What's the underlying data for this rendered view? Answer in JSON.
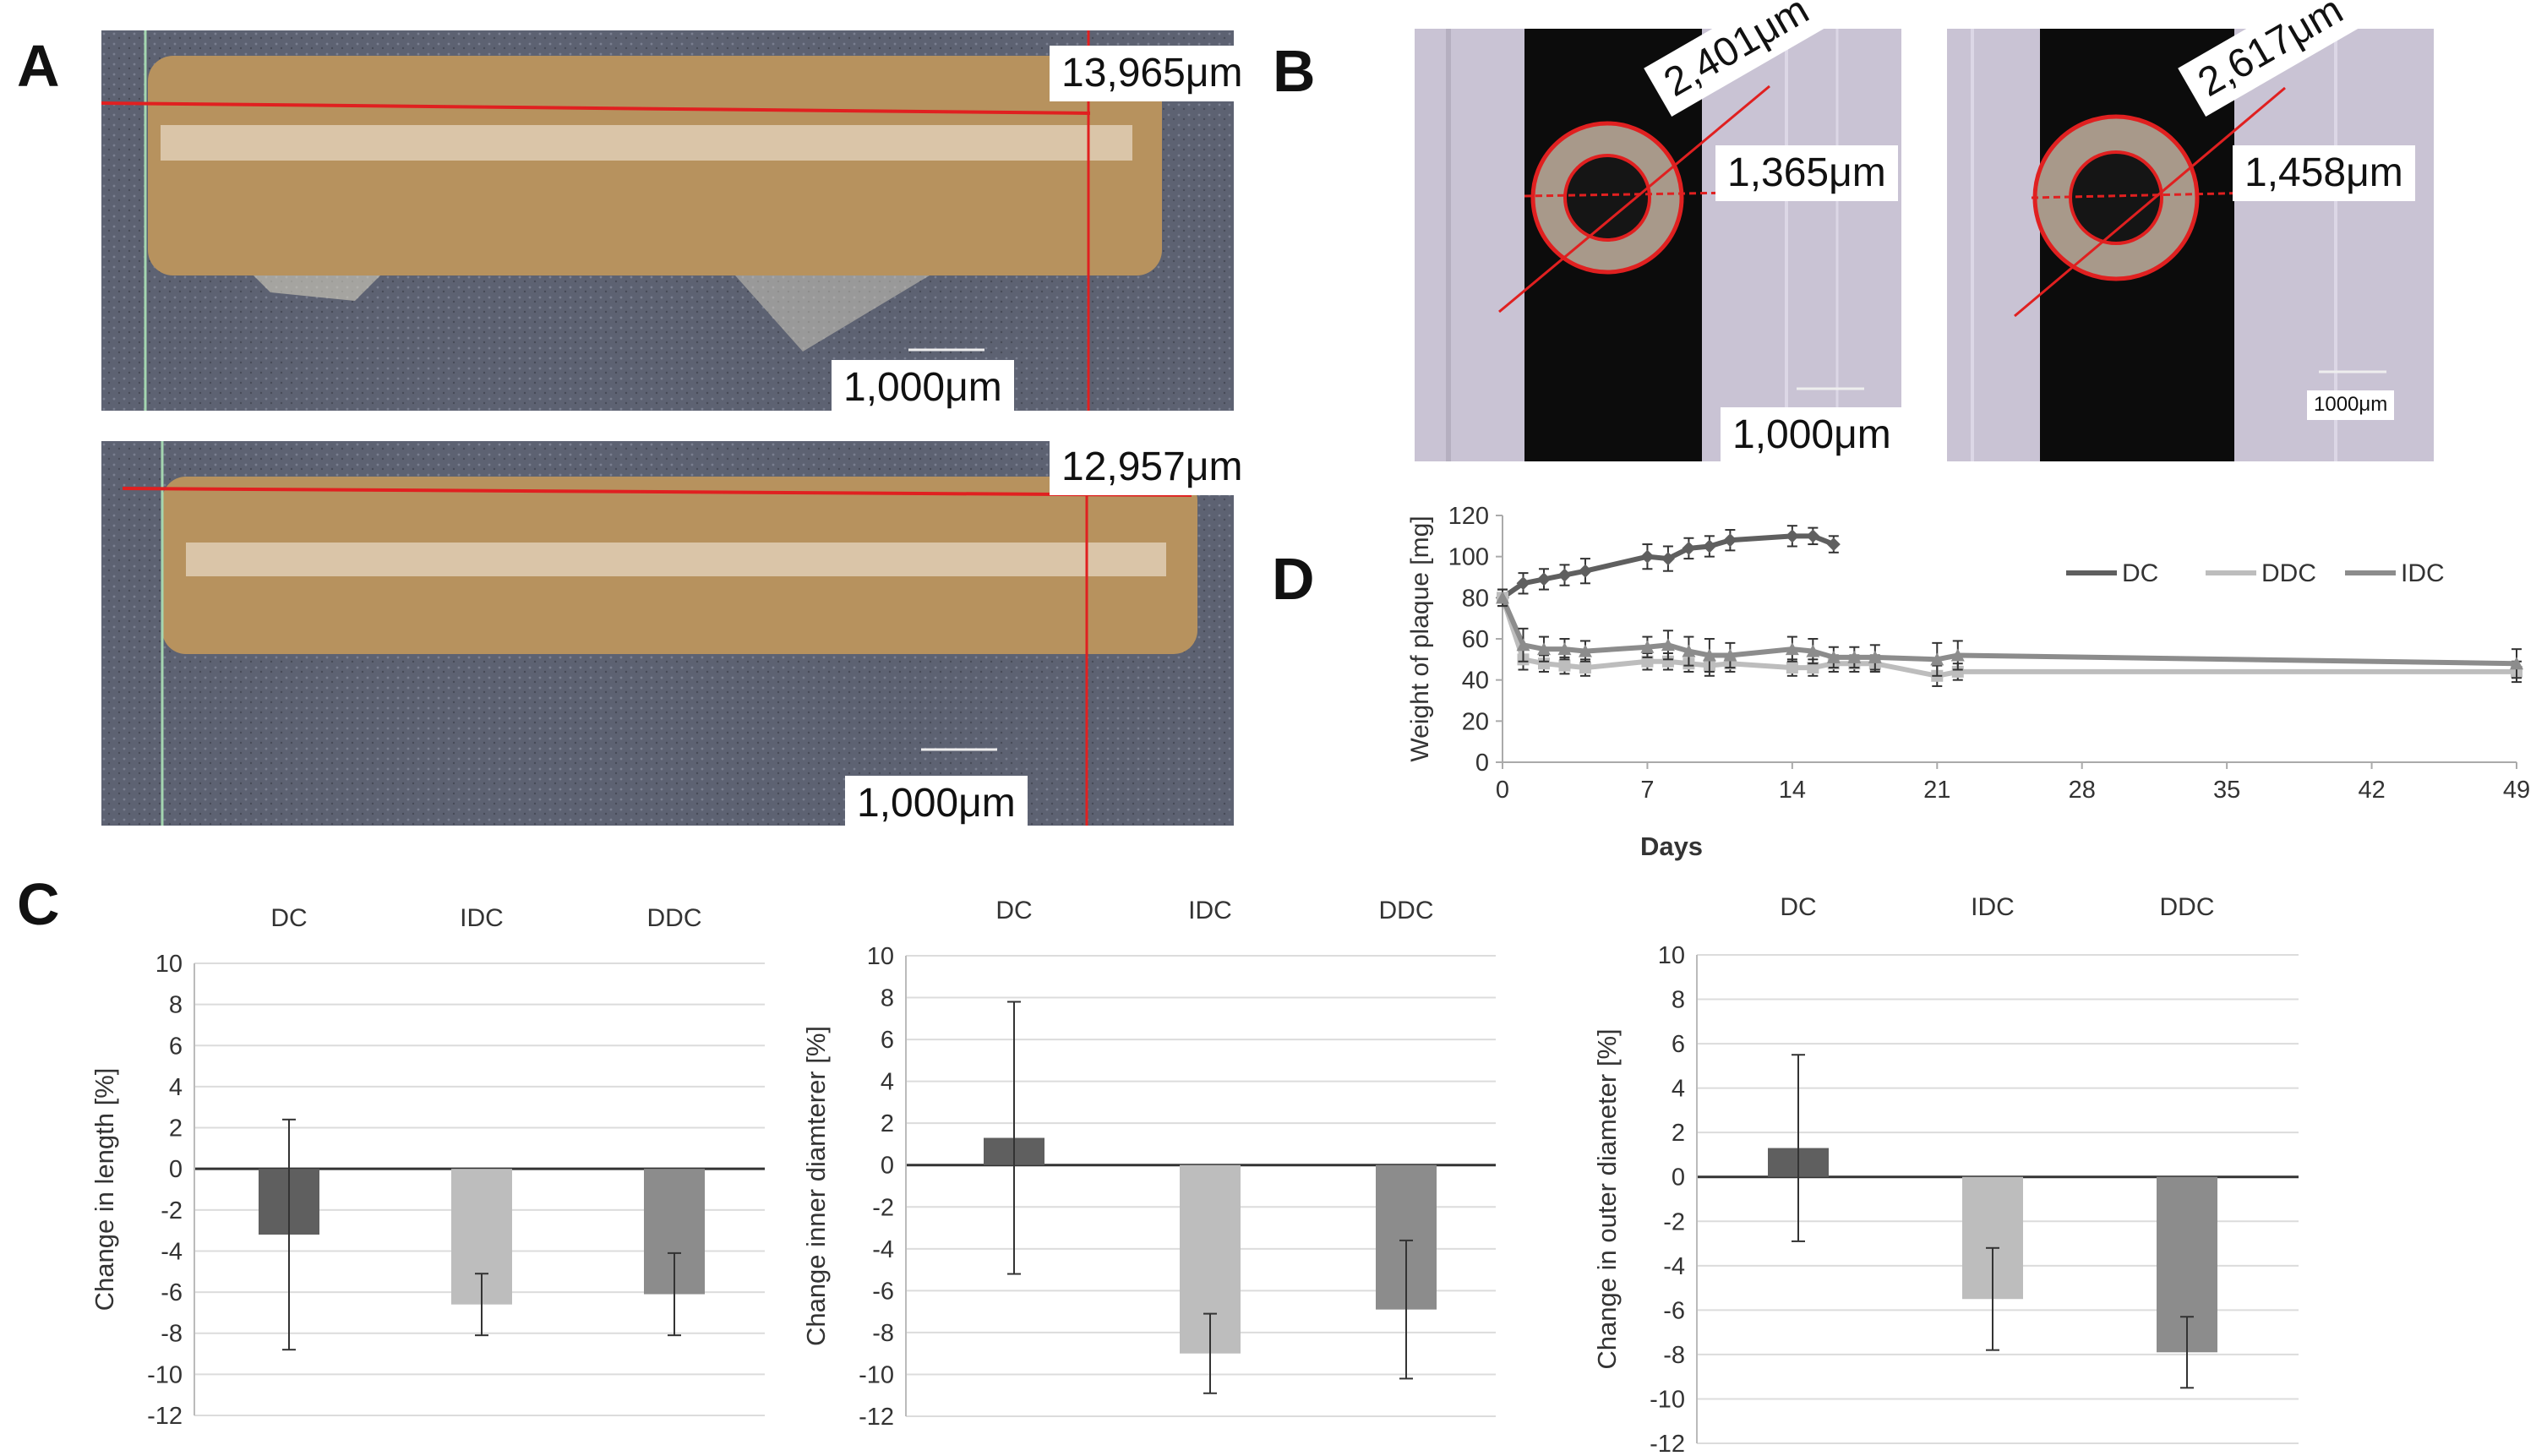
{
  "panels": {
    "a": "A",
    "b": "B",
    "c": "C",
    "d": "D"
  },
  "panel_a": {
    "length_top": "13,965μm",
    "scale_top": "1,000μm",
    "length_bottom": "12,957μm",
    "scale_bottom": "1,000μm"
  },
  "panel_b": {
    "left": {
      "outer": "2,401μm",
      "inner": "1,365μm",
      "scale": "1,000μm"
    },
    "right": {
      "outer": "2,617μm",
      "inner": "1,458μm",
      "scale": "1000μm"
    }
  },
  "colors": {
    "dc": "#5f5f5f",
    "idc": "#bdbdbd",
    "ddc": "#8c8c8c",
    "measure_red": "#e02020"
  },
  "chart_data": [
    {
      "type": "bar",
      "ylabel": "Change in length [%]",
      "categories": [
        "DC",
        "IDC",
        "DDC"
      ],
      "values": [
        -3.2,
        -6.6,
        -6.1
      ],
      "errors": [
        5.6,
        1.5,
        2.0
      ],
      "ylim": [
        -12,
        10
      ],
      "yticks": [
        10,
        8,
        6,
        4,
        2,
        0,
        -2,
        -4,
        -6,
        -8,
        -10,
        -12
      ],
      "grid": true
    },
    {
      "type": "bar",
      "ylabel": "Change inner diamterer [%]",
      "categories": [
        "DC",
        "IDC",
        "DDC"
      ],
      "values": [
        1.3,
        -9.0,
        -6.9
      ],
      "errors": [
        6.5,
        1.9,
        3.3
      ],
      "ylim": [
        -12,
        10
      ],
      "yticks": [
        10,
        8,
        6,
        4,
        2,
        0,
        -2,
        -4,
        -6,
        -8,
        -10,
        -12
      ],
      "grid": true
    },
    {
      "type": "bar",
      "ylabel": "Change in outer diameter [%]",
      "categories": [
        "DC",
        "IDC",
        "DDC"
      ],
      "values": [
        1.3,
        -5.5,
        -7.9
      ],
      "errors": [
        4.2,
        2.3,
        1.6
      ],
      "ylim": [
        -12,
        10
      ],
      "yticks": [
        10,
        8,
        6,
        4,
        2,
        0,
        -2,
        -4,
        -6,
        -8,
        -10,
        -12
      ],
      "grid": true
    },
    {
      "type": "line",
      "ylabel": "Weight of plaque [mg]",
      "xlabel": "Days",
      "xlim": [
        0,
        49
      ],
      "ylim": [
        0,
        120
      ],
      "xticks": [
        0,
        7,
        14,
        21,
        28,
        35,
        42,
        49
      ],
      "yticks": [
        0,
        20,
        40,
        60,
        80,
        100,
        120
      ],
      "legend": "top-right",
      "series": [
        {
          "name": "DC",
          "marker": "diamond",
          "x": [
            0,
            1,
            2,
            3,
            4,
            7,
            8,
            9,
            10,
            11,
            14,
            15,
            16
          ],
          "y": [
            80,
            87,
            89,
            91,
            93,
            100,
            99,
            104,
            105,
            108,
            110,
            110,
            106
          ],
          "err": [
            4,
            5,
            5,
            5,
            6,
            6,
            6,
            5,
            5,
            5,
            5,
            4,
            4
          ]
        },
        {
          "name": "DDC",
          "marker": "square",
          "x": [
            0,
            1,
            2,
            3,
            4,
            7,
            8,
            9,
            10,
            11,
            14,
            15,
            16,
            17,
            18,
            21,
            22,
            49
          ],
          "y": [
            80,
            50,
            48,
            47,
            46,
            49,
            49,
            48,
            47,
            48,
            46,
            46,
            48,
            48,
            48,
            42,
            44,
            44
          ],
          "err": [
            4,
            5,
            4,
            4,
            4,
            4,
            4,
            4,
            5,
            4,
            4,
            4,
            4,
            4,
            4,
            5,
            4,
            5
          ]
        },
        {
          "name": "IDC",
          "marker": "triangle",
          "x": [
            0,
            1,
            2,
            3,
            4,
            7,
            8,
            9,
            10,
            11,
            14,
            15,
            16,
            17,
            18,
            21,
            22,
            49
          ],
          "y": [
            80,
            57,
            55,
            55,
            54,
            56,
            57,
            54,
            52,
            52,
            55,
            54,
            51,
            51,
            51,
            50,
            52,
            48
          ],
          "err": [
            4,
            8,
            6,
            5,
            5,
            5,
            7,
            7,
            8,
            6,
            6,
            6,
            5,
            5,
            6,
            8,
            7,
            7
          ]
        }
      ]
    }
  ]
}
